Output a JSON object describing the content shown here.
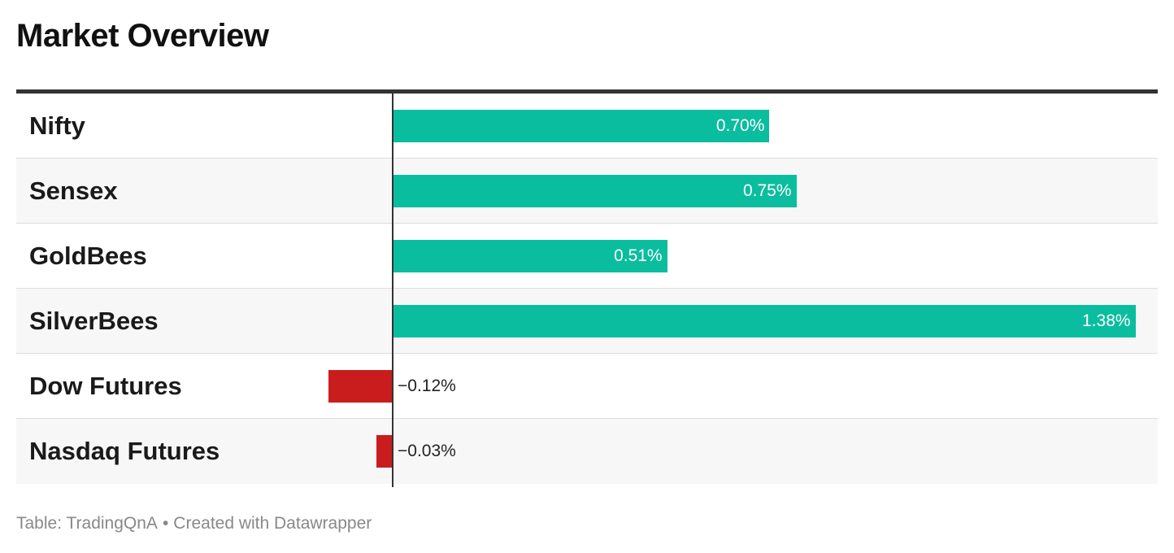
{
  "title": "Market Overview",
  "footer": {
    "source": "Table: TradingQnA",
    "separator": "•",
    "credit": "Created with Datawrapper"
  },
  "colors": {
    "positive": "#0bbd9f",
    "negative": "#c91d1d",
    "rule": "#333333"
  },
  "chart_data": {
    "type": "bar",
    "orientation": "horizontal",
    "categories": [
      "Nifty",
      "Sensex",
      "GoldBees",
      "SilverBees",
      "Dow Futures",
      "Nasdaq Futures"
    ],
    "values": [
      0.7,
      0.75,
      0.51,
      1.38,
      -0.12,
      -0.03
    ],
    "labels": [
      "0.70%",
      "0.75%",
      "0.51%",
      "1.38%",
      "−0.12%",
      "−0.03%"
    ],
    "title": "Market Overview",
    "unit": "%",
    "xlim": [
      -0.7,
      1.42
    ]
  }
}
